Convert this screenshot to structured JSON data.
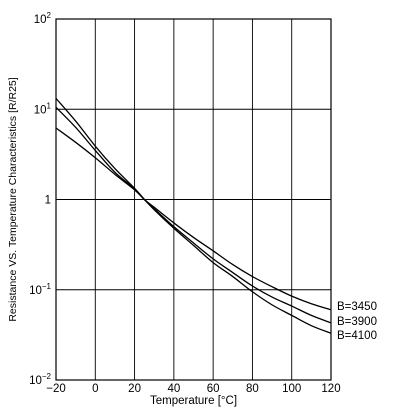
{
  "chart_data": {
    "type": "line",
    "title": "",
    "xlabel": "Temperature [°C]",
    "ylabel": "Resistance VS. Temperature Characteristics [R/R25]",
    "x_scale": "linear",
    "y_scale": "log",
    "xlim": [
      -20,
      120
    ],
    "ylim": [
      0.01,
      100
    ],
    "x_ticks": [
      "−20",
      "0",
      "20",
      "40",
      "60",
      "80",
      "100",
      "120"
    ],
    "x_tick_values": [
      -20,
      0,
      20,
      40,
      60,
      80,
      100,
      120
    ],
    "y_ticks": [
      {
        "value": 100,
        "base": "10",
        "exp": "2"
      },
      {
        "value": 10,
        "base": "10",
        "exp": "1"
      },
      {
        "value": 1,
        "base": "1",
        "exp": ""
      },
      {
        "value": 0.1,
        "base": "10",
        "exp": "−1"
      },
      {
        "value": 0.01,
        "base": "10",
        "exp": "−2"
      }
    ],
    "grid": true,
    "legend_placement": "right, at curve ends",
    "line_color": "#000000",
    "x": [
      -20,
      -10,
      0,
      10,
      20,
      25,
      30,
      40,
      50,
      60,
      70,
      80,
      90,
      100,
      110,
      120
    ],
    "series": [
      {
        "name": "B=3450",
        "values": [
          6.2,
          4.3,
          2.9,
          1.9,
          1.28,
          1.0,
          0.82,
          0.55,
          0.38,
          0.27,
          0.19,
          0.14,
          0.108,
          0.085,
          0.07,
          0.06
        ]
      },
      {
        "name": "B=3900",
        "values": [
          10.5,
          6.3,
          3.5,
          2.0,
          1.31,
          1.0,
          0.79,
          0.5,
          0.33,
          0.22,
          0.155,
          0.11,
          0.083,
          0.066,
          0.052,
          0.043
        ]
      },
      {
        "name": "B=4100",
        "values": [
          13.2,
          7.4,
          3.9,
          2.2,
          1.33,
          1.0,
          0.77,
          0.48,
          0.31,
          0.2,
          0.14,
          0.095,
          0.068,
          0.052,
          0.04,
          0.033
        ]
      }
    ]
  }
}
